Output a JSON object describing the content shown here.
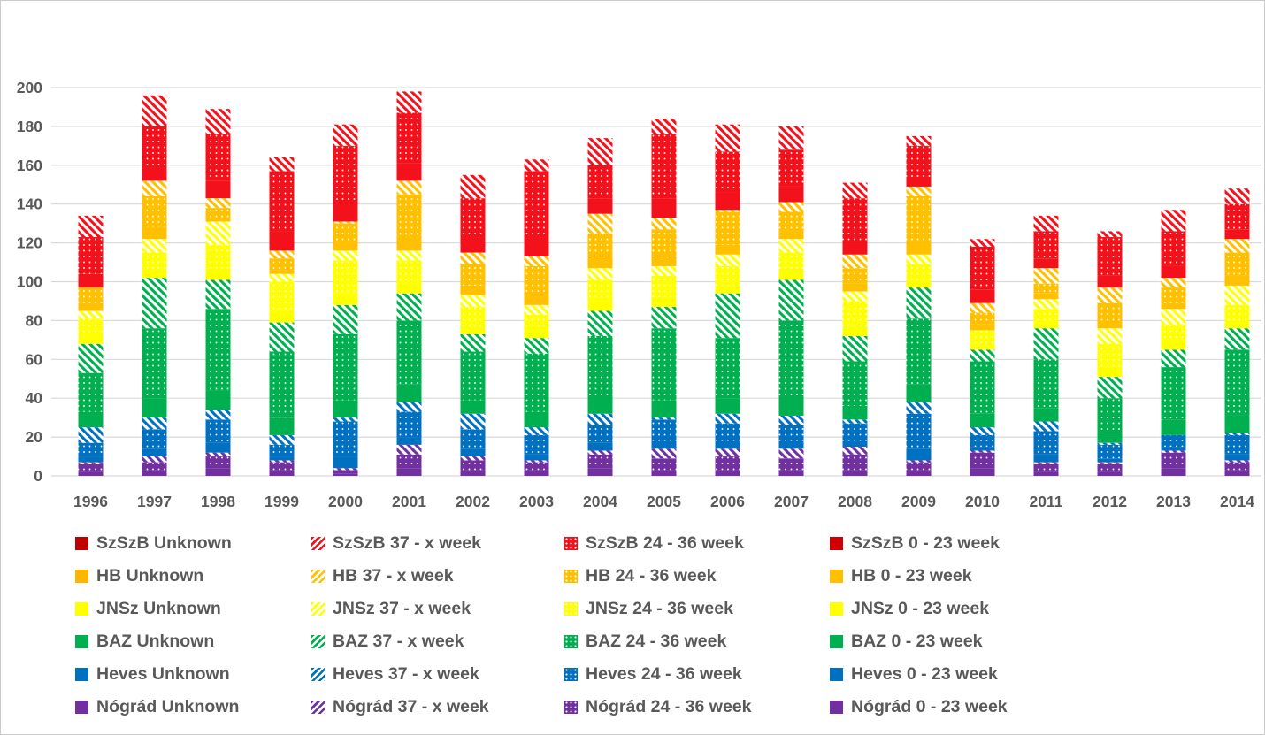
{
  "figure": {
    "background": "#ffffff",
    "border_color": "#cacaca",
    "text_color": "#595959",
    "gridline_color": "#d9d9d9"
  },
  "chart_data": {
    "type": "bar",
    "stacked": true,
    "title": "",
    "xlabel": "",
    "ylabel": "",
    "grid": true,
    "legend_position": "bottom",
    "ylim": [
      0,
      200
    ],
    "ytick_step": 20,
    "yticks": [
      0,
      20,
      40,
      60,
      80,
      100,
      120,
      140,
      160,
      180,
      200
    ],
    "categories": [
      "1996",
      "1997",
      "1998",
      "1999",
      "2000",
      "2001",
      "2002",
      "2003",
      "2004",
      "2005",
      "2006",
      "2007",
      "2008",
      "2009",
      "2010",
      "2011",
      "2012",
      "2013",
      "2014"
    ],
    "counties": [
      {
        "name": "Nógrád",
        "color": "#7030A0",
        "unknown_color": "#7030A0"
      },
      {
        "name": "Heves",
        "color": "#0070C0",
        "unknown_color": "#0070C0"
      },
      {
        "name": "BAZ",
        "color": "#00B050",
        "unknown_color": "#00B050"
      },
      {
        "name": "JNSz",
        "color": "#FFFF00",
        "unknown_color": "#FFFF00"
      },
      {
        "name": "HB",
        "color": "#FFC000",
        "unknown_color": "#FFB400"
      },
      {
        "name": "SzSzB",
        "color": "#F3121B",
        "unknown_color": "#C00000"
      }
    ],
    "bands": [
      {
        "label": "0 - 23 week",
        "pattern": "solid"
      },
      {
        "label": "24 - 36 week",
        "pattern": "dots"
      },
      {
        "label": "37 - x week",
        "pattern": "stripes"
      },
      {
        "label": "Unknown",
        "pattern": "solid-dark"
      }
    ],
    "series": [
      {
        "name": "Nógrád 0 - 23 week",
        "county": 0,
        "pattern": "solid",
        "values": [
          2,
          3,
          4,
          3,
          1,
          4,
          3,
          3,
          4,
          3,
          3,
          3,
          3,
          3,
          4,
          2,
          2,
          4,
          3
        ]
      },
      {
        "name": "Nógrád 24 - 36 week",
        "county": 0,
        "pattern": "dots",
        "values": [
          4,
          4,
          6,
          4,
          2,
          7,
          5,
          4,
          7,
          6,
          7,
          6,
          8,
          4,
          8,
          4,
          4,
          8,
          4
        ]
      },
      {
        "name": "Nógrád 37 - x week",
        "county": 0,
        "pattern": "stripes",
        "values": [
          1,
          3,
          2,
          1,
          1,
          5,
          2,
          1,
          2,
          5,
          4,
          5,
          4,
          1,
          1,
          1,
          1,
          1,
          1
        ]
      },
      {
        "name": "Nógrád Unknown",
        "county": 0,
        "pattern": "solid-dark",
        "values": [
          0,
          0,
          0,
          0,
          0,
          0,
          0,
          0,
          0,
          0,
          0,
          0,
          0,
          0,
          0,
          0,
          0,
          0,
          0
        ]
      },
      {
        "name": "Heves 0 - 23 week",
        "county": 1,
        "pattern": "solid",
        "values": [
          3,
          4,
          5,
          2,
          6,
          4,
          4,
          3,
          4,
          4,
          4,
          4,
          3,
          6,
          2,
          4,
          2,
          2,
          3
        ]
      },
      {
        "name": "Heves 24 - 36 week",
        "county": 1,
        "pattern": "dots",
        "values": [
          7,
          10,
          12,
          6,
          18,
          13,
          10,
          10,
          9,
          11,
          9,
          8,
          9,
          18,
          6,
          12,
          7,
          6,
          10
        ]
      },
      {
        "name": "Heves 37 - x week",
        "county": 1,
        "pattern": "stripes",
        "values": [
          8,
          6,
          5,
          5,
          2,
          5,
          8,
          4,
          6,
          1,
          5,
          5,
          2,
          6,
          4,
          5,
          1,
          0,
          1
        ]
      },
      {
        "name": "Heves Unknown",
        "county": 1,
        "pattern": "solid-dark",
        "values": [
          0,
          0,
          0,
          0,
          0,
          0,
          0,
          0,
          0,
          0,
          0,
          0,
          0,
          0,
          0,
          0,
          0,
          0,
          0
        ]
      },
      {
        "name": "BAZ 0 - 23 week",
        "county": 2,
        "pattern": "solid",
        "values": [
          8,
          10,
          10,
          9,
          9,
          9,
          7,
          8,
          9,
          9,
          8,
          10,
          7,
          9,
          7,
          7,
          5,
          8,
          9
        ]
      },
      {
        "name": "BAZ 24 - 36 week",
        "county": 2,
        "pattern": "dots",
        "values": [
          20,
          36,
          42,
          34,
          34,
          33,
          25,
          30,
          31,
          37,
          31,
          39,
          23,
          34,
          27,
          25,
          18,
          27,
          34
        ]
      },
      {
        "name": "BAZ 37 - x week",
        "county": 2,
        "pattern": "stripes",
        "values": [
          15,
          26,
          15,
          15,
          15,
          14,
          9,
          8,
          13,
          11,
          23,
          21,
          13,
          16,
          6,
          16,
          11,
          9,
          11
        ]
      },
      {
        "name": "BAZ Unknown",
        "county": 2,
        "pattern": "solid-dark",
        "values": [
          0,
          0,
          0,
          0,
          0,
          0,
          0,
          0,
          0,
          0,
          0,
          0,
          0,
          0,
          0,
          0,
          0,
          0,
          0
        ]
      },
      {
        "name": "JNSz 0 - 23 week",
        "county": 3,
        "pattern": "solid",
        "values": [
          4,
          4,
          6,
          6,
          6,
          5,
          4,
          4,
          5,
          5,
          4,
          4,
          5,
          4,
          3,
          3,
          5,
          4,
          4
        ]
      },
      {
        "name": "JNSz 24 - 36 week",
        "county": 3,
        "pattern": "dots",
        "values": [
          9,
          9,
          12,
          15,
          17,
          12,
          10,
          8,
          11,
          11,
          10,
          10,
          13,
          8,
          7,
          7,
          12,
          9,
          8
        ]
      },
      {
        "name": "JNSz 37 - x week",
        "county": 3,
        "pattern": "stripes",
        "values": [
          4,
          7,
          12,
          4,
          5,
          5,
          6,
          5,
          6,
          5,
          6,
          7,
          5,
          5,
          0,
          5,
          8,
          8,
          10
        ]
      },
      {
        "name": "JNSz Unknown",
        "county": 3,
        "pattern": "solid-dark",
        "values": [
          0,
          0,
          0,
          0,
          0,
          0,
          0,
          0,
          0,
          0,
          0,
          0,
          0,
          0,
          0,
          0,
          0,
          0,
          0
        ]
      },
      {
        "name": "HB 0 - 23 week",
        "county": 4,
        "pattern": "solid",
        "values": [
          4,
          6,
          2,
          2,
          4,
          8,
          5,
          5,
          6,
          5,
          5,
          4,
          4,
          7,
          3,
          3,
          4,
          3,
          5
        ]
      },
      {
        "name": "HB 24 - 36 week",
        "county": 4,
        "pattern": "dots",
        "values": [
          8,
          16,
          5,
          6,
          10,
          21,
          11,
          15,
          12,
          14,
          17,
          10,
          8,
          23,
          6,
          5,
          9,
          8,
          12
        ]
      },
      {
        "name": "HB 37 - x week",
        "county": 4,
        "pattern": "stripes",
        "values": [
          0,
          8,
          5,
          4,
          1,
          7,
          6,
          5,
          10,
          6,
          1,
          5,
          7,
          5,
          5,
          8,
          8,
          5,
          7
        ]
      },
      {
        "name": "HB Unknown",
        "county": 4,
        "pattern": "solid-dark",
        "values": [
          0,
          0,
          0,
          0,
          0,
          0,
          0,
          0,
          0,
          0,
          0,
          0,
          0,
          0,
          0,
          0,
          0,
          0,
          0
        ]
      },
      {
        "name": "SzSzB 0 - 23 week",
        "county": 5,
        "pattern": "solid",
        "values": [
          7,
          7,
          9,
          10,
          10,
          9,
          8,
          10,
          8,
          10,
          9,
          8,
          7,
          5,
          7,
          5,
          6,
          6,
          5
        ]
      },
      {
        "name": "SzSzB 24 - 36 week",
        "county": 5,
        "pattern": "dots",
        "values": [
          19,
          21,
          24,
          31,
          29,
          26,
          20,
          34,
          17,
          33,
          21,
          19,
          22,
          16,
          22,
          14,
          20,
          18,
          13
        ]
      },
      {
        "name": "SzSzB 37 - x week",
        "county": 5,
        "pattern": "stripes",
        "values": [
          11,
          16,
          13,
          7,
          11,
          11,
          12,
          6,
          14,
          8,
          14,
          12,
          8,
          5,
          4,
          8,
          3,
          11,
          8
        ]
      },
      {
        "name": "SzSzB Unknown",
        "county": 5,
        "pattern": "solid-dark",
        "values": [
          0,
          0,
          0,
          0,
          0,
          0,
          0,
          0,
          0,
          0,
          0,
          0,
          0,
          0,
          0,
          0,
          0,
          0,
          0
        ]
      }
    ]
  },
  "legend": {
    "items": [
      {
        "label": "SzSzB Unknown",
        "pattern": "solid-dark",
        "color": "#C00000"
      },
      {
        "label": "SzSzB 37 - x week",
        "pattern": "stripes",
        "color": "#F3121B"
      },
      {
        "label": "SzSzB 24 - 36 week",
        "pattern": "dots",
        "color": "#F3121B"
      },
      {
        "label": "SzSzB 0 - 23 week",
        "pattern": "solid",
        "color": "#D00000"
      },
      {
        "label": "HB Unknown",
        "pattern": "solid-dark",
        "color": "#FFB400"
      },
      {
        "label": "HB 37 - x week",
        "pattern": "stripes",
        "color": "#FFC000"
      },
      {
        "label": "HB 24 - 36 week",
        "pattern": "dots",
        "color": "#FFC000"
      },
      {
        "label": "HB 0 - 23 week",
        "pattern": "solid",
        "color": "#FFC000"
      },
      {
        "label": "JNSz Unknown",
        "pattern": "solid-dark",
        "color": "#FFFF00"
      },
      {
        "label": "JNSz 37 - x week",
        "pattern": "stripes",
        "color": "#FFFF00"
      },
      {
        "label": "JNSz 24 - 36 week",
        "pattern": "dots",
        "color": "#FFFF00"
      },
      {
        "label": "JNSz 0 - 23 week",
        "pattern": "solid",
        "color": "#FFFF00"
      },
      {
        "label": "BAZ Unknown",
        "pattern": "solid-dark",
        "color": "#00B050"
      },
      {
        "label": "BAZ 37 - x week",
        "pattern": "stripes",
        "color": "#00B050"
      },
      {
        "label": "BAZ 24 - 36 week",
        "pattern": "dots",
        "color": "#00B050"
      },
      {
        "label": "BAZ 0 - 23 week",
        "pattern": "solid",
        "color": "#00B050"
      },
      {
        "label": "Heves Unknown",
        "pattern": "solid-dark",
        "color": "#0070C0"
      },
      {
        "label": "Heves 37 - x week",
        "pattern": "stripes",
        "color": "#0070C0"
      },
      {
        "label": "Heves 24 - 36 week",
        "pattern": "dots",
        "color": "#0070C0"
      },
      {
        "label": "Heves 0 - 23 week",
        "pattern": "solid",
        "color": "#0070C0"
      },
      {
        "label": "Nógrád Unknown",
        "pattern": "solid-dark",
        "color": "#7030A0"
      },
      {
        "label": "Nógrád 37 - x week",
        "pattern": "stripes",
        "color": "#7030A0"
      },
      {
        "label": "Nógrád 24 - 36 week",
        "pattern": "dots",
        "color": "#7030A0"
      },
      {
        "label": "Nógrád 0 - 23 week",
        "pattern": "solid",
        "color": "#7030A0"
      }
    ]
  }
}
